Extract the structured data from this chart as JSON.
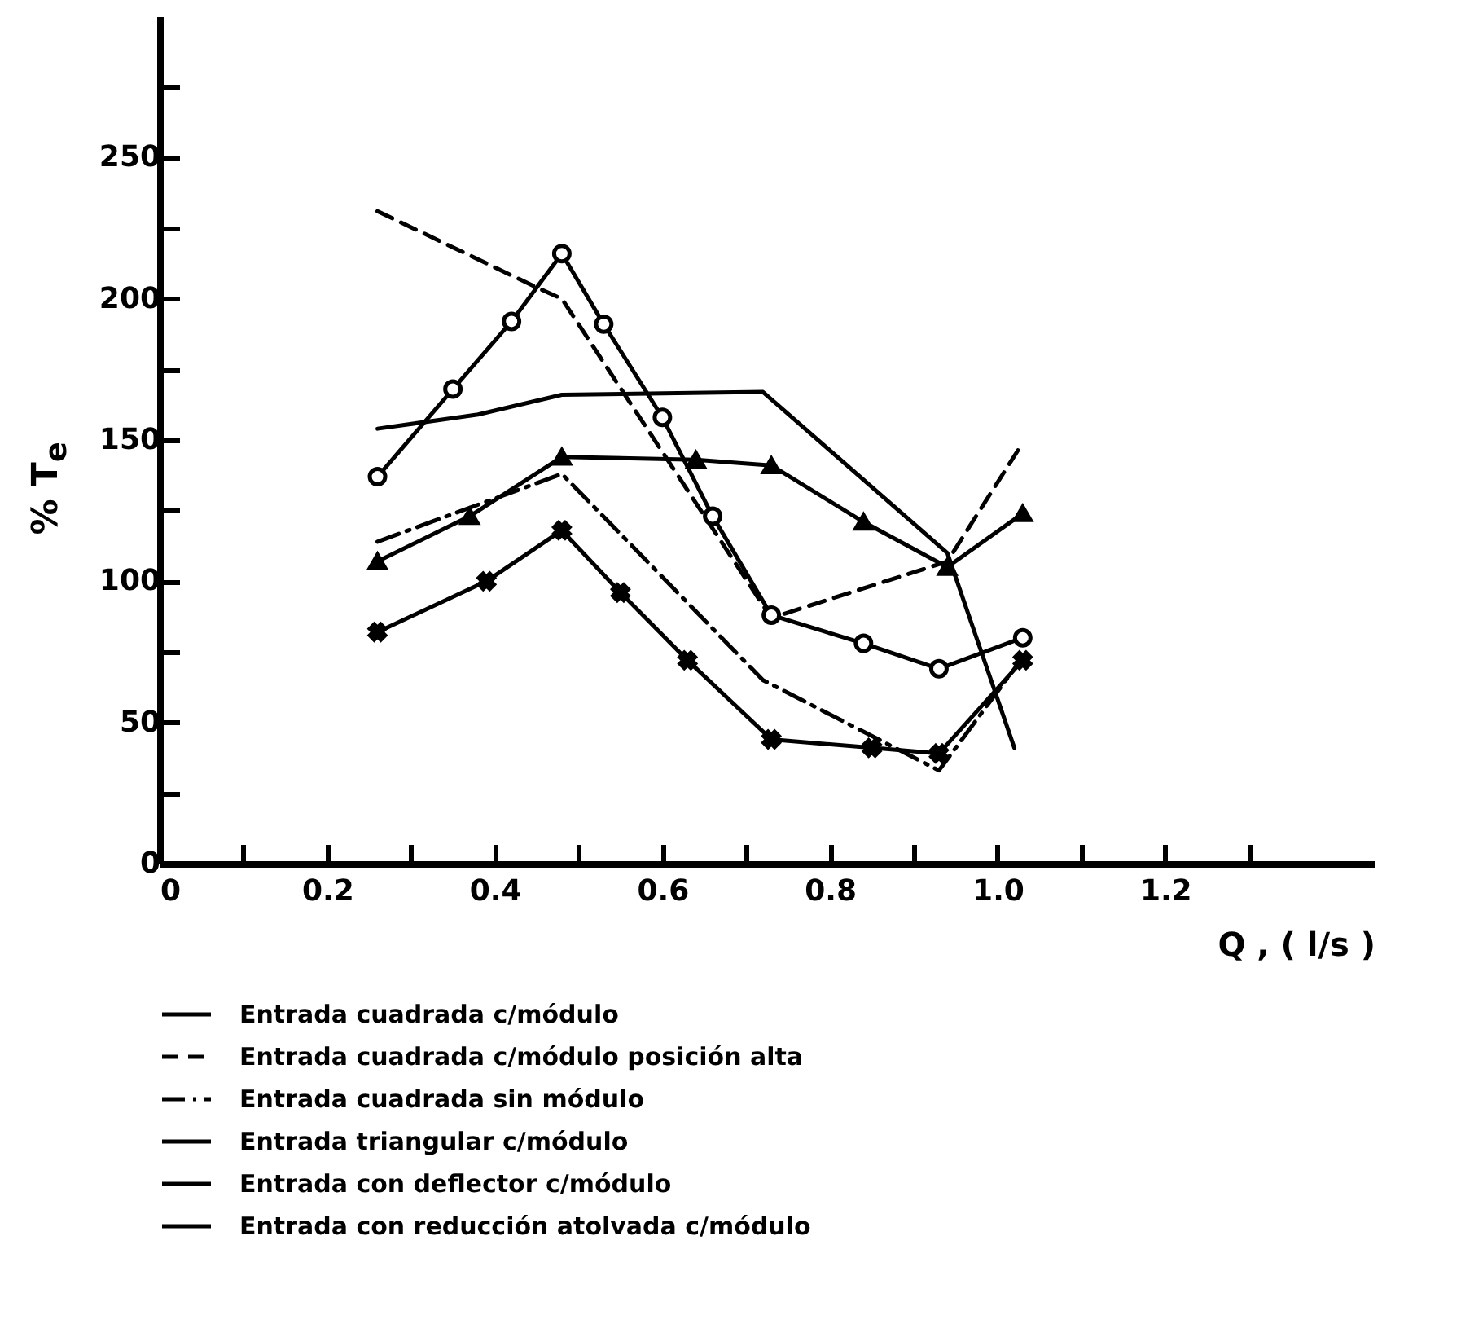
{
  "chart_data": {
    "type": "line",
    "xlabel": "Q , ( l/s )",
    "ylabel": "% T$_{e}$",
    "xlim": [
      0,
      1.45
    ],
    "ylim": [
      0,
      300
    ],
    "xticks": [
      0,
      {
        "value": 0.1,
        "label": null
      },
      0.2,
      {
        "value": 0.3,
        "label": null
      },
      0.4,
      {
        "value": 0.5,
        "label": null
      },
      0.6,
      {
        "value": 0.7,
        "label": null
      },
      0.8,
      {
        "value": 0.9,
        "label": null
      },
      {
        "value": 1,
        "label": "1.0"
      },
      {
        "value": 1.1,
        "label": null
      },
      1.2,
      {
        "value": 1.3,
        "label": null
      }
    ],
    "yticks": [
      0,
      {
        "value": 25,
        "label": null
      },
      50,
      {
        "value": 75,
        "label": null
      },
      100,
      {
        "value": 125,
        "label": null
      },
      150,
      {
        "value": 175,
        "label": null
      },
      200,
      {
        "value": 225,
        "label": null
      },
      250,
      {
        "value": 275,
        "label": null
      }
    ],
    "grid": false,
    "legend": "bottom",
    "series": [
      {
        "name": "Entrada cuadrada c/módulo",
        "color": "#000000",
        "line_style": "solid",
        "marker": "none",
        "x": [
          0.26,
          0.38,
          0.48,
          0.72,
          0.94,
          1.02
        ],
        "values": [
          154,
          159,
          166,
          167,
          110,
          41
        ]
      },
      {
        "name": "Entrada cuadrada c/módulo posición alta",
        "color": "#000000",
        "line_style": "dashed",
        "marker": "none",
        "x": [
          0.26,
          0.45,
          0.48,
          0.73,
          0.94,
          1.03
        ],
        "values": [
          231,
          204,
          200,
          87,
          107,
          149
        ]
      },
      {
        "name": "Entrada cuadrada sin módulo",
        "color": "#000000",
        "line_style": "dashdot",
        "marker": "none",
        "x": [
          0.26,
          0.48,
          0.72,
          0.93,
          1.03
        ],
        "values": [
          114,
          138,
          65,
          33,
          73
        ]
      },
      {
        "name": "Entrada triangular c/módulo",
        "color": "#000000",
        "line_style": "solid",
        "marker": "triangle",
        "x": [
          0.26,
          0.37,
          0.48,
          0.64,
          0.73,
          0.84,
          0.94,
          1.03
        ],
        "values": [
          107,
          123,
          144,
          143,
          141,
          121,
          105,
          124
        ]
      },
      {
        "name": "Entrada con deflector c/módulo",
        "color": "#000000",
        "line_style": "solid",
        "marker": "cross",
        "x": [
          0.26,
          0.39,
          0.48,
          0.55,
          0.63,
          0.73,
          0.85,
          0.93,
          1.03
        ],
        "values": [
          82,
          100,
          118,
          96,
          72,
          44,
          41,
          39,
          72
        ]
      },
      {
        "name": "Entrada con reducción atolvada c/módulo",
        "color": "#000000",
        "line_style": "solid",
        "marker": "circle",
        "x": [
          0.26,
          0.35,
          0.42,
          0.48,
          0.53,
          0.6,
          0.66,
          0.73,
          0.84,
          0.93,
          1.03
        ],
        "values": [
          137,
          168,
          192,
          216,
          191,
          158,
          123,
          88,
          78,
          69,
          80
        ]
      }
    ]
  }
}
